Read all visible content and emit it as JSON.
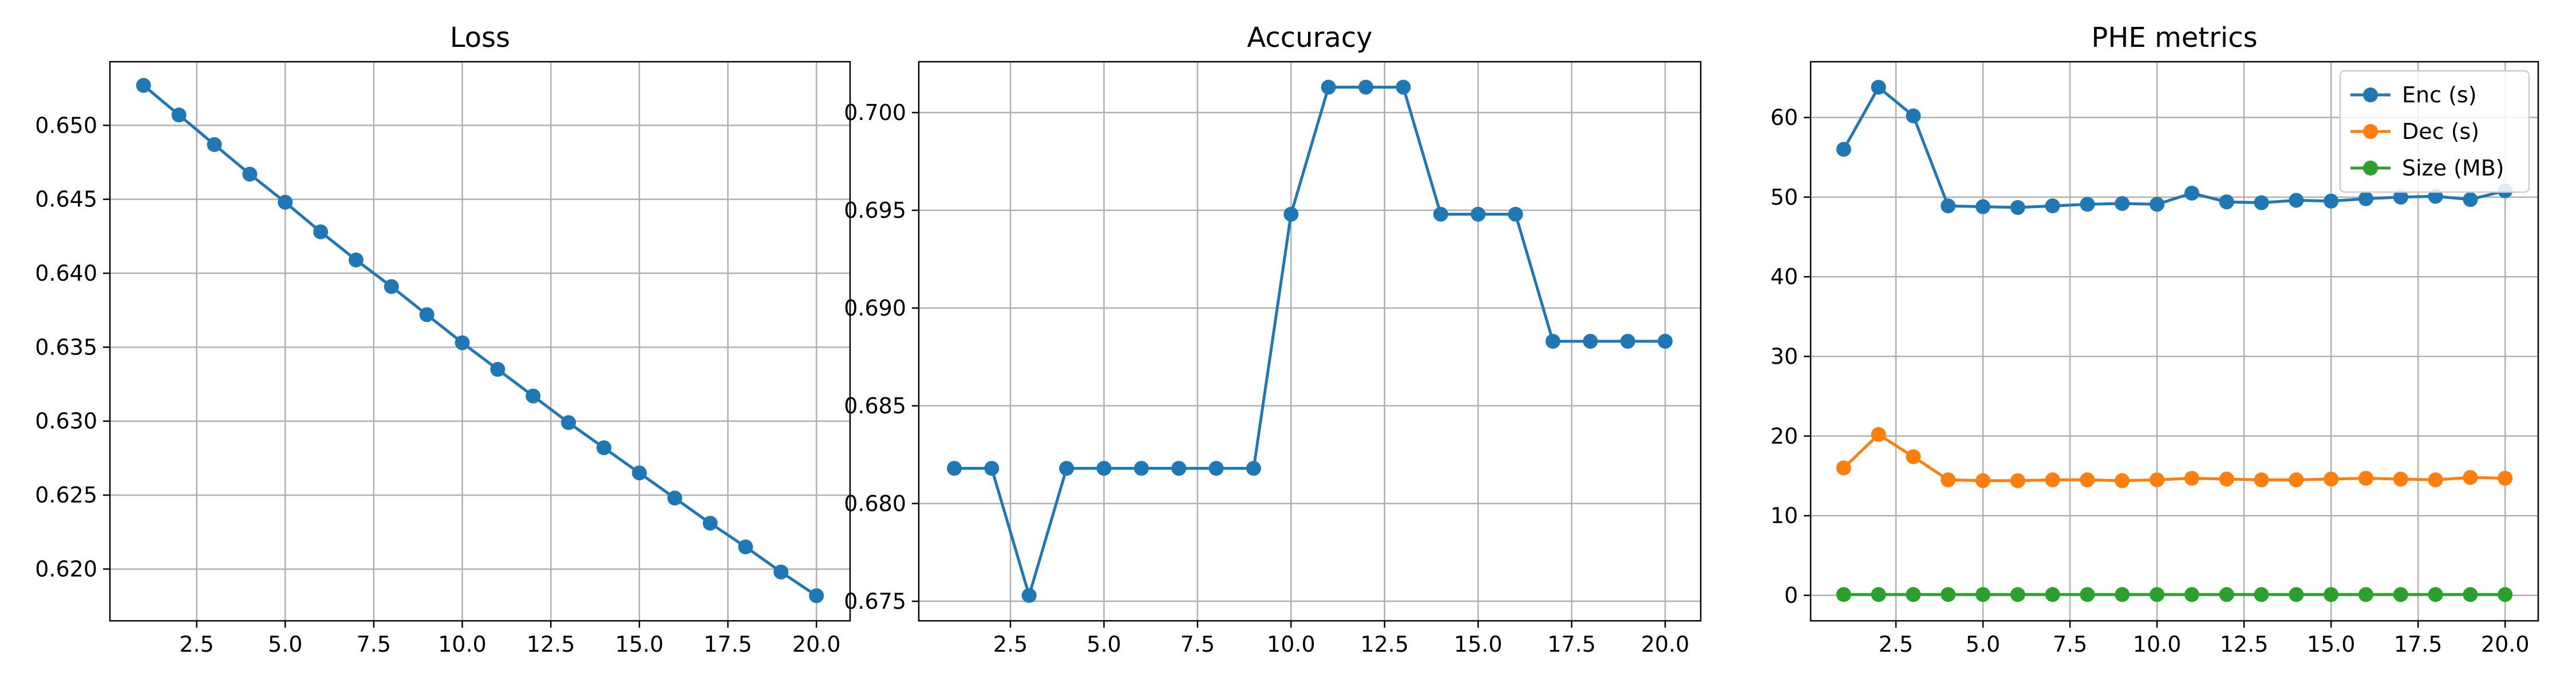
{
  "colors": {
    "enc": "#1f77b4",
    "dec": "#ff7f0e",
    "size": "#2ca02c"
  },
  "chart_data": [
    {
      "type": "line",
      "title": "Loss",
      "xlabel": "",
      "ylabel": "",
      "x": [
        1,
        2,
        3,
        4,
        5,
        6,
        7,
        8,
        9,
        10,
        11,
        12,
        13,
        14,
        15,
        16,
        17,
        18,
        19,
        20
      ],
      "xlim": [
        0.05,
        20.95
      ],
      "ylim": [
        0.6165,
        0.6543
      ],
      "xticks": [
        2.5,
        5.0,
        7.5,
        10.0,
        12.5,
        15.0,
        17.5,
        20.0
      ],
      "xtick_labels": [
        "2.5",
        "5.0",
        "7.5",
        "10.0",
        "12.5",
        "15.0",
        "17.5",
        "20.0"
      ],
      "yticks": [
        0.62,
        0.625,
        0.63,
        0.635,
        0.64,
        0.645,
        0.65
      ],
      "ytick_labels": [
        "0.620",
        "0.625",
        "0.630",
        "0.635",
        "0.640",
        "0.645",
        "0.650"
      ],
      "grid": true,
      "series": [
        {
          "color": "#1f77b4",
          "values": [
            0.6527,
            0.6507,
            0.6487,
            0.6467,
            0.6448,
            0.6428,
            0.6409,
            0.6391,
            0.6372,
            0.6353,
            0.6335,
            0.6317,
            0.6299,
            0.6282,
            0.6265,
            0.6248,
            0.6231,
            0.6215,
            0.6198,
            0.6182
          ]
        }
      ]
    },
    {
      "type": "line",
      "title": "Accuracy",
      "xlabel": "",
      "ylabel": "",
      "x": [
        1,
        2,
        3,
        4,
        5,
        6,
        7,
        8,
        9,
        10,
        11,
        12,
        13,
        14,
        15,
        16,
        17,
        18,
        19,
        20
      ],
      "xlim": [
        0.05,
        20.95
      ],
      "ylim": [
        0.674,
        0.7026
      ],
      "xticks": [
        2.5,
        5.0,
        7.5,
        10.0,
        12.5,
        15.0,
        17.5,
        20.0
      ],
      "xtick_labels": [
        "2.5",
        "5.0",
        "7.5",
        "10.0",
        "12.5",
        "15.0",
        "17.5",
        "20.0"
      ],
      "yticks": [
        0.675,
        0.68,
        0.685,
        0.69,
        0.695,
        0.7
      ],
      "ytick_labels": [
        "0.675",
        "0.680",
        "0.685",
        "0.690",
        "0.695",
        "0.700"
      ],
      "grid": true,
      "series": [
        {
          "color": "#1f77b4",
          "values": [
            0.6818,
            0.6818,
            0.6753,
            0.6818,
            0.6818,
            0.6818,
            0.6818,
            0.6818,
            0.6818,
            0.6948,
            0.7013,
            0.7013,
            0.7013,
            0.6948,
            0.6948,
            0.6948,
            0.6883,
            0.6883,
            0.6883,
            0.6883
          ]
        }
      ]
    },
    {
      "type": "line",
      "title": "PHE metrics",
      "xlabel": "",
      "ylabel": "",
      "x": [
        1,
        2,
        3,
        4,
        5,
        6,
        7,
        8,
        9,
        10,
        11,
        12,
        13,
        14,
        15,
        16,
        17,
        18,
        19,
        20
      ],
      "xlim": [
        0.05,
        20.95
      ],
      "ylim": [
        -3.2,
        67.0
      ],
      "xticks": [
        2.5,
        5.0,
        7.5,
        10.0,
        12.5,
        15.0,
        17.5,
        20.0
      ],
      "xtick_labels": [
        "2.5",
        "5.0",
        "7.5",
        "10.0",
        "12.5",
        "15.0",
        "17.5",
        "20.0"
      ],
      "yticks": [
        0,
        10,
        20,
        30,
        40,
        50,
        60
      ],
      "ytick_labels": [
        "0",
        "10",
        "20",
        "30",
        "40",
        "50",
        "60"
      ],
      "grid": true,
      "legend": "top-right",
      "series": [
        {
          "name": "Enc (s)",
          "color": "#1f77b4",
          "values": [
            56.0,
            63.8,
            60.2,
            48.9,
            48.8,
            48.7,
            48.9,
            49.1,
            49.2,
            49.1,
            50.5,
            49.4,
            49.3,
            49.6,
            49.5,
            49.8,
            50.0,
            50.1,
            49.7,
            50.8
          ]
        },
        {
          "name": "Dec (s)",
          "color": "#ff7f0e",
          "values": [
            16.0,
            20.2,
            17.4,
            14.5,
            14.4,
            14.4,
            14.5,
            14.5,
            14.4,
            14.5,
            14.7,
            14.6,
            14.5,
            14.5,
            14.6,
            14.7,
            14.6,
            14.5,
            14.8,
            14.7
          ]
        },
        {
          "name": "Size (MB)",
          "color": "#2ca02c",
          "values": [
            0.1,
            0.1,
            0.1,
            0.1,
            0.1,
            0.1,
            0.1,
            0.1,
            0.1,
            0.1,
            0.1,
            0.1,
            0.1,
            0.1,
            0.1,
            0.1,
            0.1,
            0.1,
            0.1,
            0.1
          ]
        }
      ]
    }
  ]
}
